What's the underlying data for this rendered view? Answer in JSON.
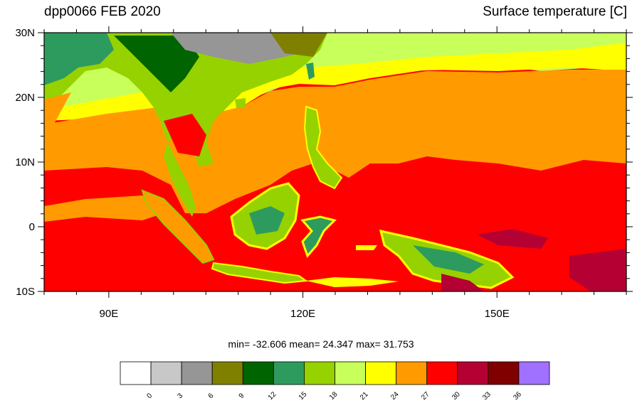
{
  "header": {
    "left_title": "dpp0066 FEB 2020",
    "right_title": "Surface temperature [C]"
  },
  "axes": {
    "lat_labels": [
      {
        "value": 30,
        "text": "30N"
      },
      {
        "value": 20,
        "text": "20N"
      },
      {
        "value": 10,
        "text": "10N"
      },
      {
        "value": 0,
        "text": "0"
      },
      {
        "value": -10,
        "text": "10S"
      }
    ],
    "lon_labels": [
      {
        "value": 90,
        "text": "90E"
      },
      {
        "value": 120,
        "text": "120E"
      },
      {
        "value": 150,
        "text": "150E"
      }
    ],
    "lon_range": [
      80,
      170
    ],
    "lat_range": [
      -10,
      30
    ]
  },
  "stats": {
    "text": "min= -32.606  mean=  24.347  max=  31.753"
  },
  "colorbar": {
    "colors": [
      "#ffffff",
      "#c8c8c8",
      "#969696",
      "#808000",
      "#006400",
      "#2e9b5e",
      "#96d200",
      "#c8ff5a",
      "#ffff00",
      "#ff9b00",
      "#ff0000",
      "#b40032",
      "#800000",
      "#a070ff"
    ],
    "labels": [
      "0",
      "3",
      "6",
      "9",
      "12",
      "15",
      "18",
      "21",
      "24",
      "27",
      "30",
      "33",
      "36"
    ]
  }
}
